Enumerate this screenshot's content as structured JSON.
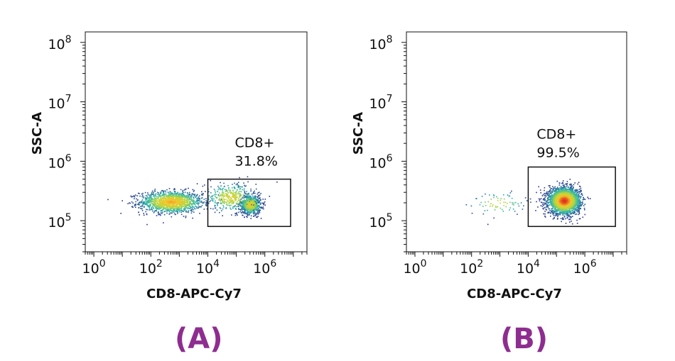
{
  "colors": {
    "density_low": "#2b2f8f",
    "density_mid": "#2ab7a9",
    "density_high_1": "#b9d63b",
    "density_high_2": "#f3c62b",
    "density_peak": "#e2261c",
    "panel_label": "#8e2d8f",
    "gate_stroke": "#111111"
  },
  "panels": [
    {
      "label": "(A)"
    },
    {
      "label": "(B)"
    }
  ],
  "chart_data": [
    {
      "type": "scatter",
      "title": "",
      "xlabel": "CD8-APC-Cy7",
      "ylabel": "SSC-A",
      "x_scale": "log10",
      "y_scale": "log10",
      "xlim": [
        0.5,
        30000000
      ],
      "ylim": [
        30000,
        150000000
      ],
      "x_ticks": [
        {
          "value": 1,
          "base": "10",
          "exp": "0"
        },
        {
          "value": 100,
          "base": "10",
          "exp": "2"
        },
        {
          "value": 10000,
          "base": "10",
          "exp": "4"
        },
        {
          "value": 1000000,
          "base": "10",
          "exp": "6"
        }
      ],
      "y_ticks": [
        {
          "value": 100000,
          "base": "10",
          "exp": "5"
        },
        {
          "value": 1000000,
          "base": "10",
          "exp": "6"
        },
        {
          "value": 10000000,
          "base": "10",
          "exp": "7"
        },
        {
          "value": 100000000,
          "base": "10",
          "exp": "8"
        }
      ],
      "gate": {
        "name": "CD8+",
        "percent": "31.8%",
        "x_range": [
          10000,
          8000000
        ],
        "y_range": [
          80000,
          500000
        ]
      },
      "populations": [
        {
          "x_center": 500,
          "y_center": 210000,
          "x_spread_log": 0.55,
          "y_spread_log": 0.09,
          "weight": 0.55
        },
        {
          "x_center": 300000,
          "y_center": 190000,
          "x_spread_log": 0.18,
          "y_spread_log": 0.08,
          "weight": 0.3
        },
        {
          "x_center": 60000,
          "y_center": 250000,
          "x_spread_log": 0.45,
          "y_spread_log": 0.12,
          "weight": 0.15
        }
      ],
      "grid": false,
      "legend": "none"
    },
    {
      "type": "scatter",
      "title": "",
      "xlabel": "CD8-APC-Cy7",
      "ylabel": "SSC-A",
      "x_scale": "log10",
      "y_scale": "log10",
      "xlim": [
        0.5,
        30000000
      ],
      "ylim": [
        30000,
        150000000
      ],
      "x_ticks": [
        {
          "value": 1,
          "base": "10",
          "exp": "0"
        },
        {
          "value": 100,
          "base": "10",
          "exp": "2"
        },
        {
          "value": 10000,
          "base": "10",
          "exp": "4"
        },
        {
          "value": 1000000,
          "base": "10",
          "exp": "6"
        }
      ],
      "y_ticks": [
        {
          "value": 100000,
          "base": "10",
          "exp": "5"
        },
        {
          "value": 1000000,
          "base": "10",
          "exp": "6"
        },
        {
          "value": 10000000,
          "base": "10",
          "exp": "7"
        },
        {
          "value": 100000000,
          "base": "10",
          "exp": "8"
        }
      ],
      "gate": {
        "name": "CD8+",
        "percent": "99.5%",
        "x_range": [
          10000,
          12000000
        ],
        "y_range": [
          80000,
          800000
        ]
      },
      "populations": [
        {
          "x_center": 180000,
          "y_center": 220000,
          "x_spread_log": 0.28,
          "y_spread_log": 0.11,
          "weight": 0.97
        },
        {
          "x_center": 800,
          "y_center": 200000,
          "x_spread_log": 0.5,
          "y_spread_log": 0.1,
          "weight": 0.03
        }
      ],
      "grid": false,
      "legend": "none"
    }
  ]
}
